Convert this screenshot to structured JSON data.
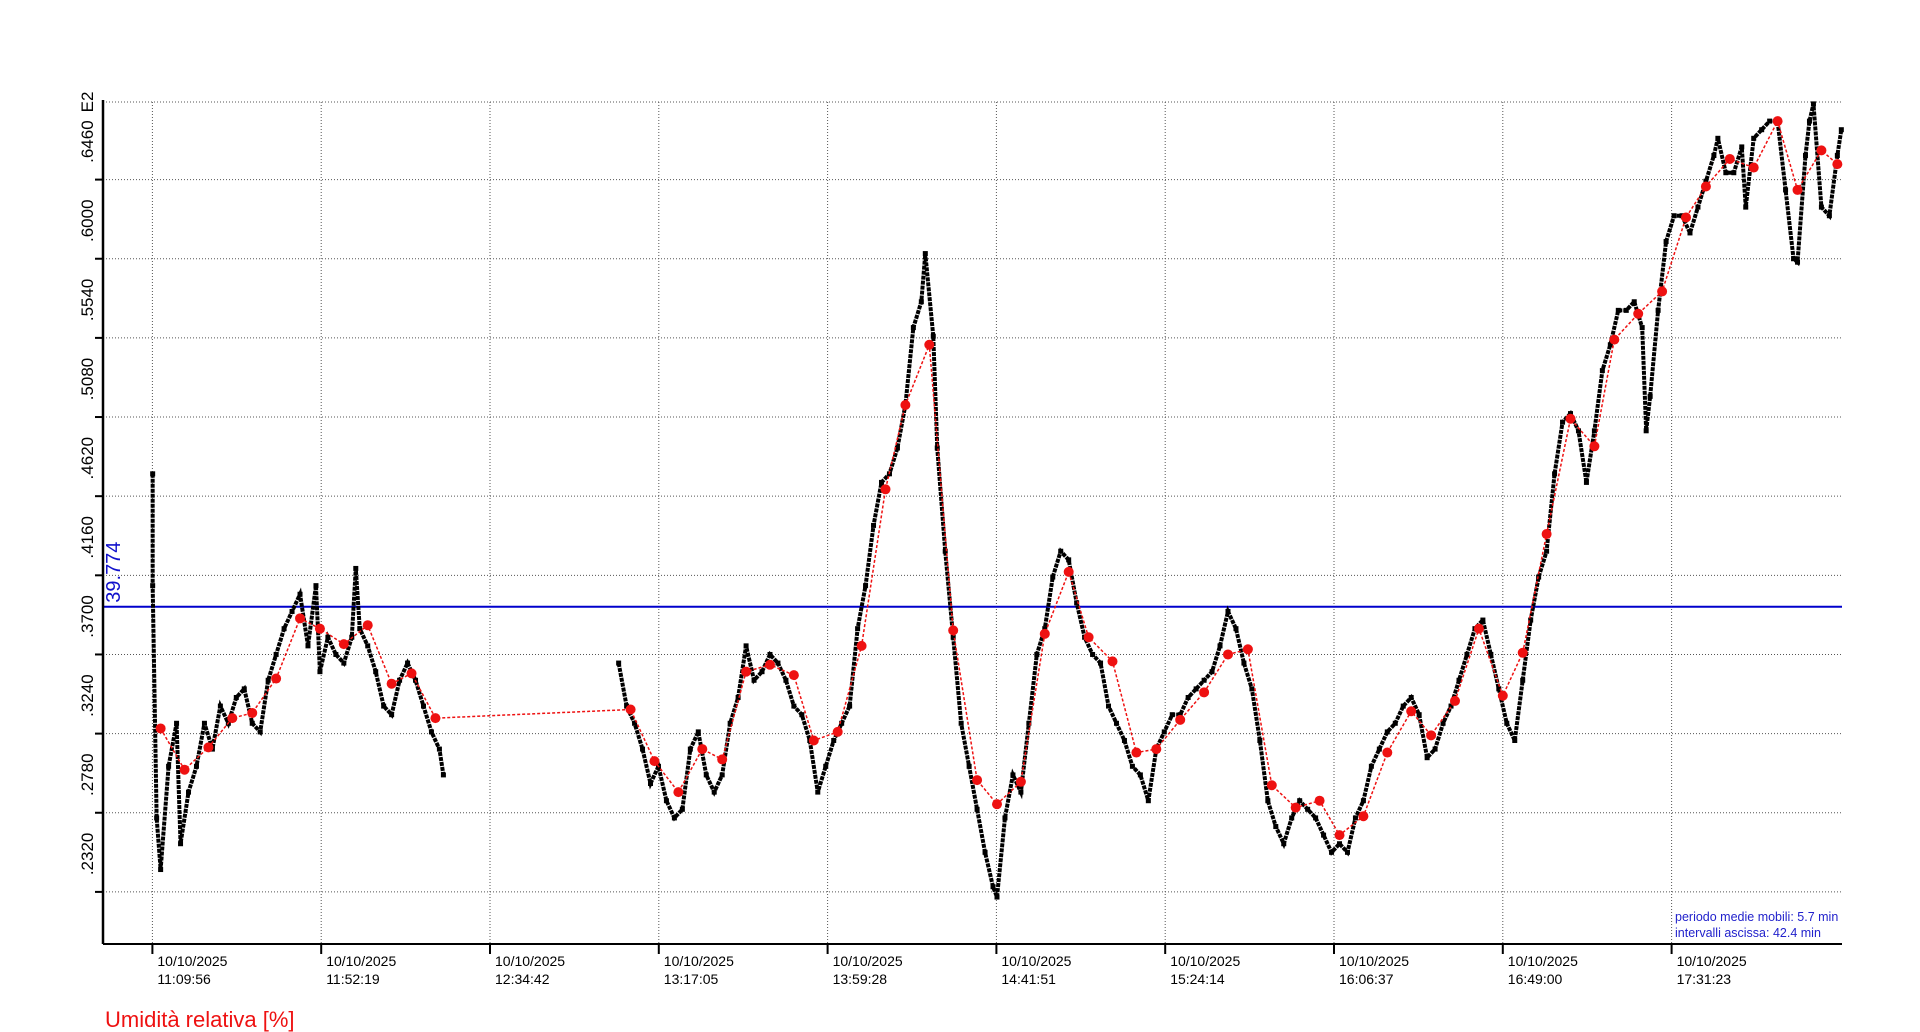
{
  "chart_data": {
    "type": "scatter",
    "ylabel_exponent": "E2",
    "y_ticks": [
      ".2320",
      ".2780",
      ".3240",
      ".3700",
      ".4160",
      ".4620",
      ".5080",
      ".5540",
      ".6000",
      ".6460"
    ],
    "y_tick_values": [
      23.2,
      27.8,
      32.4,
      37.0,
      41.6,
      46.2,
      50.8,
      55.4,
      60.0,
      64.6
    ],
    "ylim": [
      20.2,
      69.1
    ],
    "x_ticks": [
      {
        "date": "10/10/2025",
        "time": "11:09:56"
      },
      {
        "date": "10/10/2025",
        "time": "11:52:19"
      },
      {
        "date": "10/10/2025",
        "time": "12:34:42"
      },
      {
        "date": "10/10/2025",
        "time": "13:17:05"
      },
      {
        "date": "10/10/2025",
        "time": "13:59:28"
      },
      {
        "date": "10/10/2025",
        "time": "14:41:51"
      },
      {
        "date": "10/10/2025",
        "time": "15:24:14"
      },
      {
        "date": "10/10/2025",
        "time": "16:06:37"
      },
      {
        "date": "10/10/2025",
        "time": "16:49:00"
      },
      {
        "date": "10/10/2025",
        "time": "17:31:23"
      }
    ],
    "xlim": [
      "10:57:30",
      "18:14:30"
    ],
    "grid": true,
    "reference_line": {
      "label": "39.774",
      "value": 39.774,
      "color": "#0000cc"
    },
    "notes": [
      "periodo medie mobili: 5.7 min",
      "intervalli ascissa: 42.4 min"
    ],
    "legend": {
      "label": "Umidità relativa [%]",
      "color": "#ee1111",
      "placement": "bottom-left"
    },
    "series": [
      {
        "role": "measurements",
        "color": "#000000",
        "points": [
          [
            "11:10",
            47.5
          ],
          [
            "11:10",
            41.0
          ],
          [
            "11:11",
            27.5
          ],
          [
            "11:12",
            24.5
          ],
          [
            "11:14",
            30.5
          ],
          [
            "11:16",
            33.0
          ],
          [
            "11:17",
            26.0
          ],
          [
            "11:19",
            29.0
          ],
          [
            "11:21",
            30.5
          ],
          [
            "11:23",
            33.0
          ],
          [
            "11:25",
            31.5
          ],
          [
            "11:27",
            34.0
          ],
          [
            "11:29",
            33.0
          ],
          [
            "11:31",
            34.5
          ],
          [
            "11:33",
            35.0
          ],
          [
            "11:35",
            33.0
          ],
          [
            "11:37",
            32.5
          ],
          [
            "11:39",
            35.5
          ],
          [
            "11:41",
            37.0
          ],
          [
            "11:43",
            38.5
          ],
          [
            "11:45",
            39.5
          ],
          [
            "11:47",
            40.5
          ],
          [
            "11:49",
            37.5
          ],
          [
            "11:51",
            41.0
          ],
          [
            "11:52",
            36.0
          ],
          [
            "11:54",
            38.0
          ],
          [
            "11:56",
            37.0
          ],
          [
            "11:58",
            36.5
          ],
          [
            "12:00",
            38.0
          ],
          [
            "12:01",
            42.0
          ],
          [
            "12:02",
            38.5
          ],
          [
            "12:04",
            37.5
          ],
          [
            "12:06",
            36.0
          ],
          [
            "12:08",
            34.0
          ],
          [
            "12:10",
            33.5
          ],
          [
            "12:12",
            35.5
          ],
          [
            "12:14",
            36.5
          ],
          [
            "12:16",
            35.5
          ],
          [
            "12:18",
            34.0
          ],
          [
            "12:20",
            32.5
          ],
          [
            "12:22",
            31.5
          ],
          [
            "12:23",
            30.0
          ],
          [
            "13:07",
            36.5
          ],
          [
            "13:09",
            34.0
          ],
          [
            "13:11",
            33.0
          ],
          [
            "13:13",
            31.5
          ],
          [
            "13:15",
            29.5
          ],
          [
            "13:17",
            30.5
          ],
          [
            "13:19",
            28.5
          ],
          [
            "13:21",
            27.5
          ],
          [
            "13:23",
            28.0
          ],
          [
            "13:25",
            31.5
          ],
          [
            "13:27",
            32.5
          ],
          [
            "13:29",
            30.0
          ],
          [
            "13:31",
            29.0
          ],
          [
            "13:33",
            30.0
          ],
          [
            "13:35",
            33.0
          ],
          [
            "13:37",
            34.5
          ],
          [
            "13:39",
            37.5
          ],
          [
            "13:41",
            35.5
          ],
          [
            "13:43",
            36.0
          ],
          [
            "13:45",
            37.0
          ],
          [
            "13:47",
            36.5
          ],
          [
            "13:49",
            35.5
          ],
          [
            "13:51",
            34.0
          ],
          [
            "13:53",
            33.5
          ],
          [
            "13:55",
            32.0
          ],
          [
            "13:57",
            29.0
          ],
          [
            "13:59",
            30.5
          ],
          [
            "14:01",
            32.0
          ],
          [
            "14:03",
            33.0
          ],
          [
            "14:05",
            34.0
          ],
          [
            "14:07",
            38.5
          ],
          [
            "14:09",
            41.0
          ],
          [
            "14:11",
            44.5
          ],
          [
            "14:13",
            47.0
          ],
          [
            "14:15",
            47.5
          ],
          [
            "14:17",
            49.0
          ],
          [
            "14:19",
            51.5
          ],
          [
            "14:21",
            56.0
          ],
          [
            "14:23",
            57.5
          ],
          [
            "14:24",
            60.3
          ],
          [
            "14:26",
            55.5
          ],
          [
            "14:27",
            49.0
          ],
          [
            "14:29",
            43.0
          ],
          [
            "14:31",
            38.0
          ],
          [
            "14:33",
            33.0
          ],
          [
            "14:35",
            30.5
          ],
          [
            "14:37",
            28.0
          ],
          [
            "14:39",
            25.5
          ],
          [
            "14:41",
            23.5
          ],
          [
            "14:42",
            22.9
          ],
          [
            "14:44",
            27.5
          ],
          [
            "14:46",
            30.0
          ],
          [
            "14:48",
            29.0
          ],
          [
            "14:50",
            33.0
          ],
          [
            "14:52",
            37.0
          ],
          [
            "14:54",
            38.5
          ],
          [
            "14:56",
            41.5
          ],
          [
            "14:58",
            43.0
          ],
          [
            "15:00",
            42.5
          ],
          [
            "15:02",
            40.0
          ],
          [
            "15:04",
            38.0
          ],
          [
            "15:06",
            37.0
          ],
          [
            "15:08",
            36.5
          ],
          [
            "15:10",
            34.0
          ],
          [
            "15:12",
            33.0
          ],
          [
            "15:14",
            32.0
          ],
          [
            "15:16",
            30.5
          ],
          [
            "15:18",
            30.0
          ],
          [
            "15:20",
            28.5
          ],
          [
            "15:22",
            31.5
          ],
          [
            "15:24",
            32.5
          ],
          [
            "15:26",
            33.5
          ],
          [
            "15:28",
            33.5
          ],
          [
            "15:30",
            34.5
          ],
          [
            "15:32",
            35.0
          ],
          [
            "15:34",
            35.5
          ],
          [
            "15:36",
            36.0
          ],
          [
            "15:38",
            37.5
          ],
          [
            "15:40",
            39.5
          ],
          [
            "15:42",
            38.5
          ],
          [
            "15:44",
            36.5
          ],
          [
            "15:46",
            35.0
          ],
          [
            "15:48",
            32.0
          ],
          [
            "15:50",
            28.5
          ],
          [
            "15:52",
            27.0
          ],
          [
            "15:54",
            26.0
          ],
          [
            "15:56",
            27.5
          ],
          [
            "15:58",
            28.5
          ],
          [
            "16:00",
            28.0
          ],
          [
            "16:02",
            27.5
          ],
          [
            "16:04",
            26.5
          ],
          [
            "16:06",
            25.5
          ],
          [
            "16:08",
            26.0
          ],
          [
            "16:10",
            25.5
          ],
          [
            "16:12",
            27.5
          ],
          [
            "16:14",
            28.5
          ],
          [
            "16:16",
            30.5
          ],
          [
            "16:18",
            31.5
          ],
          [
            "16:20",
            32.5
          ],
          [
            "16:22",
            33.0
          ],
          [
            "16:24",
            34.0
          ],
          [
            "16:26",
            34.5
          ],
          [
            "16:28",
            33.5
          ],
          [
            "16:30",
            31.0
          ],
          [
            "16:32",
            31.5
          ],
          [
            "16:34",
            33.0
          ],
          [
            "16:36",
            34.0
          ],
          [
            "16:38",
            35.5
          ],
          [
            "16:40",
            37.0
          ],
          [
            "16:42",
            38.5
          ],
          [
            "16:44",
            39.0
          ],
          [
            "16:46",
            37.0
          ],
          [
            "16:48",
            35.0
          ],
          [
            "16:50",
            33.0
          ],
          [
            "16:52",
            32.0
          ],
          [
            "16:54",
            35.5
          ],
          [
            "16:56",
            39.0
          ],
          [
            "16:58",
            41.5
          ],
          [
            "17:00",
            43.0
          ],
          [
            "17:02",
            47.5
          ],
          [
            "17:04",
            50.5
          ],
          [
            "17:06",
            51.0
          ],
          [
            "17:08",
            50.0
          ],
          [
            "17:10",
            47.0
          ],
          [
            "17:12",
            50.0
          ],
          [
            "17:14",
            53.5
          ],
          [
            "17:16",
            55.0
          ],
          [
            "17:18",
            57.0
          ],
          [
            "17:20",
            57.0
          ],
          [
            "17:22",
            57.5
          ],
          [
            "17:24",
            56.0
          ],
          [
            "17:25",
            50.0
          ],
          [
            "17:26",
            52.0
          ],
          [
            "17:28",
            57.0
          ],
          [
            "17:30",
            61.0
          ],
          [
            "17:32",
            62.5
          ],
          [
            "17:34",
            62.5
          ],
          [
            "17:36",
            61.5
          ],
          [
            "17:38",
            63.0
          ],
          [
            "17:40",
            64.5
          ],
          [
            "17:42",
            66.0
          ],
          [
            "17:43",
            67.0
          ],
          [
            "17:45",
            65.0
          ],
          [
            "17:47",
            65.0
          ],
          [
            "17:49",
            66.5
          ],
          [
            "17:50",
            63.0
          ],
          [
            "17:52",
            67.0
          ],
          [
            "17:54",
            67.5
          ],
          [
            "17:56",
            68.0
          ],
          [
            "17:58",
            68.0
          ],
          [
            "18:00",
            64.0
          ],
          [
            "18:02",
            60.0
          ],
          [
            "18:03",
            59.8
          ],
          [
            "18:05",
            66.0
          ],
          [
            "18:06",
            68.0
          ],
          [
            "18:07",
            69.0
          ],
          [
            "18:09",
            63.0
          ],
          [
            "18:11",
            62.5
          ],
          [
            "18:13",
            66.0
          ],
          [
            "18:14",
            67.5
          ]
        ]
      },
      {
        "role": "moving-average",
        "color": "#ee1111",
        "points": [
          [
            "11:12",
            32.7
          ],
          [
            "11:18",
            30.3
          ],
          [
            "11:24",
            31.6
          ],
          [
            "11:30",
            33.3
          ],
          [
            "11:35",
            33.6
          ],
          [
            "11:41",
            35.6
          ],
          [
            "11:47",
            39.1
          ],
          [
            "11:52",
            38.5
          ],
          [
            "11:58",
            37.6
          ],
          [
            "12:04",
            38.7
          ],
          [
            "12:10",
            35.3
          ],
          [
            "12:15",
            35.9
          ],
          [
            "12:21",
            33.3
          ],
          [
            "13:10",
            33.8
          ],
          [
            "13:16",
            30.8
          ],
          [
            "13:22",
            29.0
          ],
          [
            "13:28",
            31.5
          ],
          [
            "13:33",
            30.9
          ],
          [
            "13:39",
            36.0
          ],
          [
            "13:45",
            36.4
          ],
          [
            "13:51",
            35.8
          ],
          [
            "13:56",
            32.0
          ],
          [
            "14:02",
            32.5
          ],
          [
            "14:08",
            37.5
          ],
          [
            "14:14",
            46.6
          ],
          [
            "14:19",
            51.5
          ],
          [
            "14:25",
            55.0
          ],
          [
            "14:31",
            38.4
          ],
          [
            "14:37",
            29.7
          ],
          [
            "14:42",
            28.3
          ],
          [
            "14:48",
            29.6
          ],
          [
            "14:54",
            38.2
          ],
          [
            "15:00",
            41.8
          ],
          [
            "15:05",
            38.0
          ],
          [
            "15:11",
            36.6
          ],
          [
            "15:17",
            31.3
          ],
          [
            "15:22",
            31.5
          ],
          [
            "15:28",
            33.2
          ],
          [
            "15:34",
            34.8
          ],
          [
            "15:40",
            37.0
          ],
          [
            "15:45",
            37.3
          ],
          [
            "15:51",
            29.4
          ],
          [
            "15:57",
            28.1
          ],
          [
            "16:03",
            28.5
          ],
          [
            "16:08",
            26.5
          ],
          [
            "16:14",
            27.6
          ],
          [
            "16:20",
            31.3
          ],
          [
            "16:26",
            33.7
          ],
          [
            "16:31",
            32.3
          ],
          [
            "16:37",
            34.3
          ],
          [
            "16:43",
            38.5
          ],
          [
            "16:49",
            34.6
          ],
          [
            "16:54",
            37.1
          ],
          [
            "17:00",
            44.0
          ],
          [
            "17:06",
            50.7
          ],
          [
            "17:12",
            49.1
          ],
          [
            "17:17",
            55.3
          ],
          [
            "17:23",
            56.8
          ],
          [
            "17:29",
            58.1
          ],
          [
            "17:35",
            62.4
          ],
          [
            "17:40",
            64.2
          ],
          [
            "17:46",
            65.8
          ],
          [
            "17:52",
            65.3
          ],
          [
            "17:58",
            68.0
          ],
          [
            "18:03",
            64.0
          ],
          [
            "18:09",
            66.3
          ],
          [
            "18:13",
            65.5
          ]
        ]
      }
    ]
  }
}
